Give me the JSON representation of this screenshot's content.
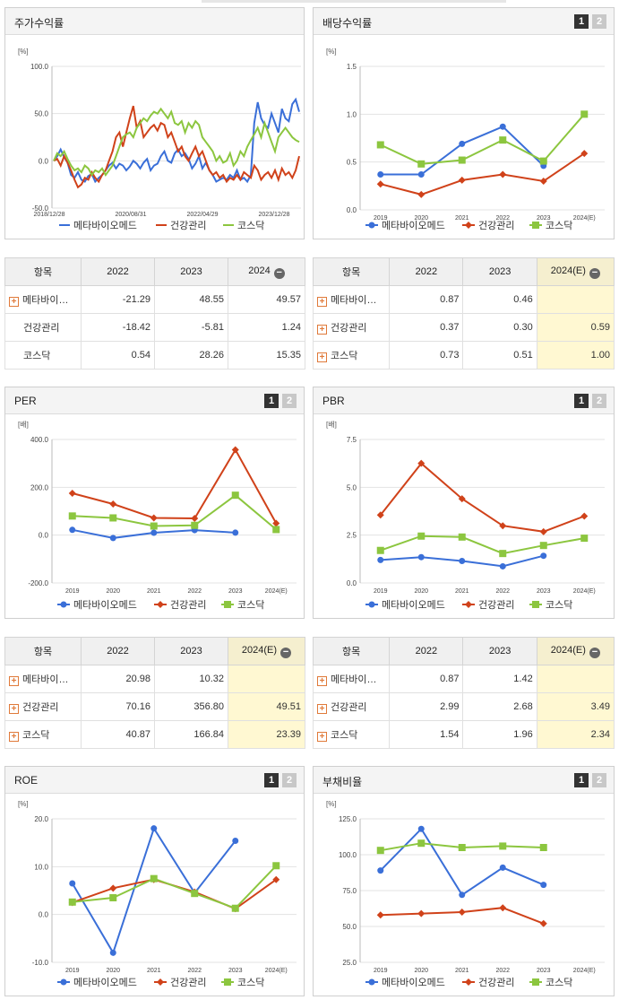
{
  "colors": {
    "meta": "#3a6fd8",
    "health": "#d0421a",
    "kosdaq": "#8cc63f"
  },
  "charts": [
    {
      "id": "stock",
      "title": "주가수익률",
      "unit": "[%]",
      "pager": [],
      "yticks": [
        "100.0",
        "50.0",
        "0.0",
        "-50.0"
      ],
      "ymin": -50,
      "ymax": 100,
      "xlabels": [
        "2018/12/28",
        "2020/08/31",
        "2022/04/29",
        "2023/12/28"
      ],
      "legend": [
        "메타바이오메드",
        "건강관리",
        "코스닥"
      ]
    },
    {
      "id": "div",
      "title": "배당수익률",
      "unit": "[%]",
      "pager": [
        "1",
        "2"
      ],
      "yticks": [
        "1.5",
        "1.0",
        "0.5",
        "0.0"
      ],
      "ymin": 0,
      "ymax": 1.5,
      "xlabels": [
        "2019",
        "2020",
        "2021",
        "2022",
        "2023",
        "2024(E)"
      ],
      "legend": [
        "메타바이오메드",
        "건강관리",
        "코스닥"
      ]
    },
    {
      "id": "per",
      "title": "PER",
      "unit": "[배]",
      "pager": [
        "1",
        "2"
      ],
      "yticks": [
        "400.0",
        "200.0",
        "0.0",
        "-200.0"
      ],
      "ymin": -200,
      "ymax": 400,
      "xlabels": [
        "2019",
        "2020",
        "2021",
        "2022",
        "2023",
        "2024(E)"
      ],
      "legend": [
        "메타바이오메드",
        "건강관리",
        "코스닥"
      ]
    },
    {
      "id": "pbr",
      "title": "PBR",
      "unit": "[배]",
      "pager": [
        "1",
        "2"
      ],
      "yticks": [
        "7.5",
        "5.0",
        "2.5",
        "0.0"
      ],
      "ymin": 0,
      "ymax": 7.5,
      "xlabels": [
        "2019",
        "2020",
        "2021",
        "2022",
        "2023",
        "2024(E)"
      ],
      "legend": [
        "메타바이오메드",
        "건강관리",
        "코스닥"
      ]
    },
    {
      "id": "roe",
      "title": "ROE",
      "unit": "[%]",
      "pager": [
        "1",
        "2"
      ],
      "yticks": [
        "20.0",
        "10.0",
        "0.0",
        "-10.0"
      ],
      "ymin": -10,
      "ymax": 20,
      "xlabels": [
        "2019",
        "2020",
        "2021",
        "2022",
        "2023",
        "2024(E)"
      ],
      "legend": [
        "메타바이오메드",
        "건강관리",
        "코스닥"
      ]
    },
    {
      "id": "debt",
      "title": "부채비율",
      "unit": "[%]",
      "pager": [
        "1",
        "2"
      ],
      "yticks": [
        "125.0",
        "100.0",
        "75.0",
        "50.0",
        "25.0"
      ],
      "ymin": 25,
      "ymax": 125,
      "xlabels": [
        "2019",
        "2020",
        "2021",
        "2022",
        "2023",
        "2024(E)"
      ],
      "legend": [
        "메타바이오메드",
        "건강관리",
        "코스닥"
      ]
    }
  ],
  "chart_data": [
    {
      "type": "line",
      "id": "stock",
      "ylim": [
        -50,
        100
      ],
      "series": [
        {
          "name": "메타바이오메드",
          "values": [
            0,
            5,
            12,
            4,
            -2,
            -15,
            -18,
            -12,
            -20,
            -22,
            -16,
            -14,
            -22,
            -18,
            -15,
            -10,
            -5,
            -2,
            -8,
            -3,
            -5,
            -10,
            -6,
            0,
            -3,
            -8,
            -2,
            2,
            -10,
            -5,
            -3,
            5,
            10,
            0,
            -2,
            8,
            12,
            5,
            8,
            2,
            -8,
            -3,
            5,
            -8,
            -2,
            -10,
            -15,
            -22,
            -20,
            -18,
            -20,
            -15,
            -18,
            -10,
            -20,
            -18,
            -22,
            -15,
            40,
            62,
            45,
            38,
            35,
            50,
            40,
            30,
            55,
            45,
            42,
            60,
            65,
            52
          ]
        },
        {
          "name": "건강관리",
          "values": [
            0,
            2,
            -5,
            5,
            -2,
            -10,
            -20,
            -28,
            -25,
            -18,
            -20,
            -12,
            -18,
            -22,
            -15,
            -10,
            0,
            10,
            25,
            30,
            15,
            30,
            45,
            58,
            35,
            42,
            25,
            30,
            35,
            38,
            32,
            40,
            38,
            25,
            30,
            20,
            10,
            15,
            5,
            0,
            8,
            15,
            5,
            10,
            0,
            -10,
            -15,
            -12,
            -18,
            -15,
            -22,
            -18,
            -20,
            -15,
            -20,
            -12,
            -15,
            -18,
            -5,
            -10,
            -20,
            -15,
            -12,
            -18,
            -10,
            -20,
            -8,
            -15,
            -12,
            -18,
            -10,
            5
          ]
        },
        {
          "name": "코스닥",
          "values": [
            0,
            8,
            5,
            10,
            2,
            -5,
            -10,
            -8,
            -12,
            -5,
            -8,
            -15,
            -10,
            -12,
            -8,
            -15,
            -10,
            -5,
            5,
            15,
            25,
            28,
            30,
            25,
            35,
            40,
            45,
            42,
            48,
            52,
            50,
            55,
            50,
            45,
            52,
            40,
            38,
            42,
            30,
            40,
            35,
            42,
            38,
            25,
            20,
            15,
            10,
            0,
            5,
            -2,
            0,
            8,
            -5,
            0,
            10,
            5,
            15,
            22,
            28,
            35,
            25,
            40,
            30,
            20,
            10,
            25,
            30,
            35,
            30,
            25,
            22,
            20
          ]
        }
      ]
    },
    {
      "type": "line",
      "id": "div",
      "categories": [
        "2019",
        "2020",
        "2021",
        "2022",
        "2023",
        "2024(E)"
      ],
      "ylim": [
        0,
        1.5
      ],
      "series": [
        {
          "name": "메타바이오메드",
          "values": [
            0.37,
            0.37,
            0.69,
            0.87,
            0.46,
            null
          ]
        },
        {
          "name": "건강관리",
          "values": [
            0.27,
            0.16,
            0.31,
            0.37,
            0.3,
            0.59
          ]
        },
        {
          "name": "코스닥",
          "values": [
            0.68,
            0.48,
            0.52,
            0.73,
            0.51,
            1.0
          ]
        }
      ]
    },
    {
      "type": "line",
      "id": "per",
      "categories": [
        "2019",
        "2020",
        "2021",
        "2022",
        "2023",
        "2024(E)"
      ],
      "ylim": [
        -200,
        400
      ],
      "series": [
        {
          "name": "메타바이오메드",
          "values": [
            22,
            -12,
            10,
            20.98,
            10.32,
            null
          ]
        },
        {
          "name": "건강관리",
          "values": [
            175,
            130,
            72,
            70.16,
            356.8,
            49.51
          ]
        },
        {
          "name": "코스닥",
          "values": [
            80,
            72,
            38,
            40.87,
            166.84,
            23.39
          ]
        }
      ]
    },
    {
      "type": "line",
      "id": "pbr",
      "categories": [
        "2019",
        "2020",
        "2021",
        "2022",
        "2023",
        "2024(E)"
      ],
      "ylim": [
        0,
        7.5
      ],
      "series": [
        {
          "name": "메타바이오메드",
          "values": [
            1.2,
            1.35,
            1.15,
            0.87,
            1.42,
            null
          ]
        },
        {
          "name": "건강관리",
          "values": [
            3.55,
            6.25,
            4.4,
            2.99,
            2.68,
            3.49
          ]
        },
        {
          "name": "코스닥",
          "values": [
            1.7,
            2.45,
            2.4,
            1.54,
            1.96,
            2.34
          ]
        }
      ]
    },
    {
      "type": "line",
      "id": "roe",
      "categories": [
        "2019",
        "2020",
        "2021",
        "2022",
        "2023",
        "2024(E)"
      ],
      "ylim": [
        -10,
        20
      ],
      "series": [
        {
          "name": "메타바이오메드",
          "values": [
            6.5,
            -8,
            18,
            4.5,
            15.4,
            null
          ]
        },
        {
          "name": "건강관리",
          "values": [
            2.5,
            5.5,
            7.3,
            4.7,
            1.2,
            7.3
          ]
        },
        {
          "name": "코스닥",
          "values": [
            2.6,
            3.5,
            7.5,
            4.4,
            1.3,
            10.2
          ]
        }
      ]
    },
    {
      "type": "line",
      "id": "debt",
      "categories": [
        "2019",
        "2020",
        "2021",
        "2022",
        "2023",
        "2024(E)"
      ],
      "ylim": [
        25,
        125
      ],
      "series": [
        {
          "name": "메타바이오메드",
          "values": [
            89,
            118,
            72,
            91,
            79,
            null
          ]
        },
        {
          "name": "건강관리",
          "values": [
            58,
            59,
            60,
            63,
            52,
            null
          ]
        },
        {
          "name": "코스닥",
          "values": [
            103,
            108,
            105,
            106,
            105,
            null
          ]
        }
      ]
    }
  ],
  "tables": [
    {
      "id": "stock-table",
      "headers": [
        "항목",
        "2022",
        "2023",
        "2024"
      ],
      "minus": true,
      "rows": [
        {
          "name": "메타바이…",
          "plus": true,
          "cells": [
            "-21.29",
            "48.55",
            "49.57"
          ]
        },
        {
          "name": "건강관리",
          "plus": false,
          "cells": [
            "-18.42",
            "-5.81",
            "1.24"
          ]
        },
        {
          "name": "코스닥",
          "plus": false,
          "cells": [
            "0.54",
            "28.26",
            "15.35"
          ]
        }
      ]
    },
    {
      "id": "div-table",
      "headers": [
        "항목",
        "2022",
        "2023",
        "2024(E)"
      ],
      "minus": true,
      "highlight_last": true,
      "rows": [
        {
          "name": "메타바이…",
          "plus": true,
          "cells": [
            "0.87",
            "0.46",
            ""
          ]
        },
        {
          "name": "건강관리",
          "plus": true,
          "cells": [
            "0.37",
            "0.30",
            "0.59"
          ]
        },
        {
          "name": "코스닥",
          "plus": true,
          "cells": [
            "0.73",
            "0.51",
            "1.00"
          ]
        }
      ]
    },
    {
      "id": "per-table",
      "headers": [
        "항목",
        "2022",
        "2023",
        "2024(E)"
      ],
      "minus": true,
      "highlight_last": true,
      "rows": [
        {
          "name": "메타바이…",
          "plus": true,
          "cells": [
            "20.98",
            "10.32",
            ""
          ]
        },
        {
          "name": "건강관리",
          "plus": true,
          "cells": [
            "70.16",
            "356.80",
            "49.51"
          ]
        },
        {
          "name": "코스닥",
          "plus": true,
          "cells": [
            "40.87",
            "166.84",
            "23.39"
          ]
        }
      ]
    },
    {
      "id": "pbr-table",
      "headers": [
        "항목",
        "2022",
        "2023",
        "2024(E)"
      ],
      "minus": true,
      "highlight_last": true,
      "rows": [
        {
          "name": "메타바이…",
          "plus": true,
          "cells": [
            "0.87",
            "1.42",
            ""
          ]
        },
        {
          "name": "건강관리",
          "plus": true,
          "cells": [
            "2.99",
            "2.68",
            "3.49"
          ]
        },
        {
          "name": "코스닥",
          "plus": true,
          "cells": [
            "1.54",
            "1.96",
            "2.34"
          ]
        }
      ]
    }
  ]
}
